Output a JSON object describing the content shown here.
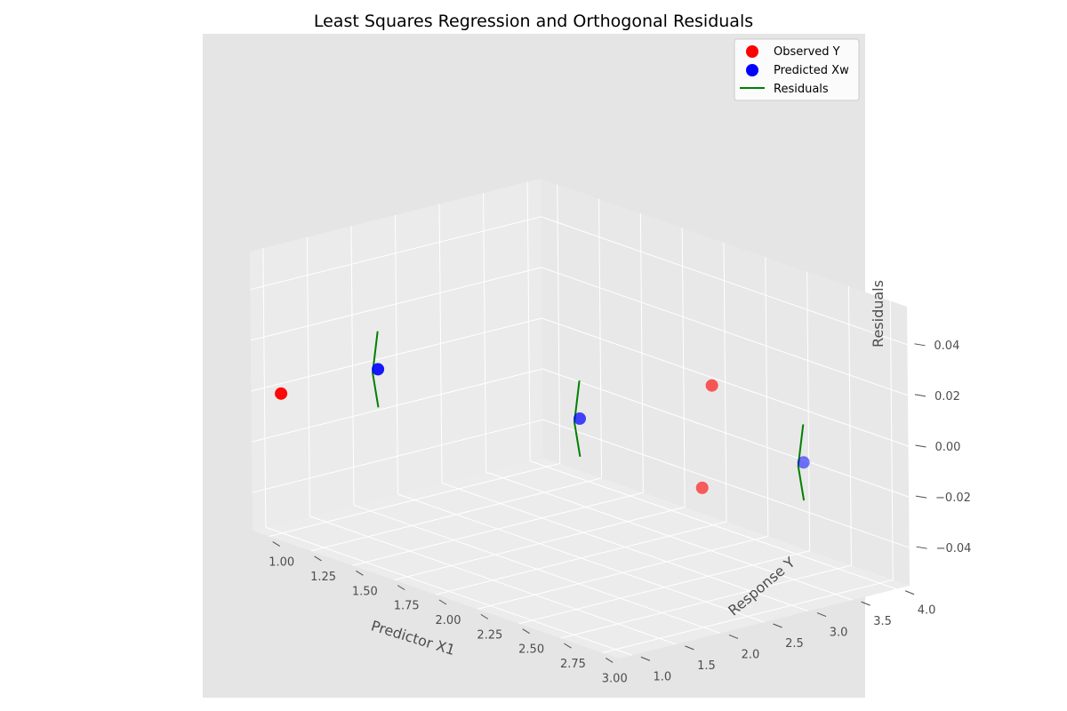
{
  "chart_data": {
    "type": "scatter",
    "projection": "3d",
    "title": "Least Squares Regression and Orthogonal Residuals",
    "xlabel": "Predictor X1",
    "ylabel": "Response Y",
    "zlabel": "Residuals",
    "xlim": [
      0.9,
      3.1
    ],
    "ylim": [
      0.85,
      4.15
    ],
    "zlim": [
      -0.055,
      0.055
    ],
    "xticks": [
      "1.00",
      "1.25",
      "1.50",
      "1.75",
      "2.00",
      "2.25",
      "2.50",
      "2.75",
      "3.00"
    ],
    "yticks": [
      "1.0",
      "1.5",
      "2.0",
      "2.5",
      "3.0",
      "3.5",
      "4.0"
    ],
    "zticks": [
      "−0.04",
      "−0.02",
      "0.00",
      "0.02",
      "0.04"
    ],
    "grid": true,
    "legend_position": "top-right",
    "background": "#e5e5e5",
    "series": [
      {
        "name": "Observed Y",
        "color": "#ff0000",
        "marker": "circle",
        "points": [
          {
            "x": 1.0,
            "y": 1.0,
            "z": 0.0
          },
          {
            "x": 2.0,
            "y": 4.0,
            "z": 0.0
          },
          {
            "x": 3.0,
            "y": 2.0,
            "z": 0.0
          }
        ]
      },
      {
        "name": "Predicted Xw",
        "color": "#0000ff",
        "marker": "circle",
        "points": [
          {
            "x": 1.0,
            "y": 2.1,
            "z": 0.0
          },
          {
            "x": 2.0,
            "y": 2.5,
            "z": 0.0
          },
          {
            "x": 3.0,
            "y": 3.15,
            "z": 0.0
          }
        ]
      },
      {
        "name": "Residuals",
        "color": "#008000",
        "marker": "line",
        "segments": [
          {
            "x": 1.0,
            "y": 2.1,
            "z_from": -0.015,
            "z_to": 0.015
          },
          {
            "x": 2.0,
            "y": 2.5,
            "z_from": -0.015,
            "z_to": 0.015
          },
          {
            "x": 3.0,
            "y": 3.15,
            "z_from": -0.015,
            "z_to": 0.015
          }
        ]
      }
    ]
  }
}
